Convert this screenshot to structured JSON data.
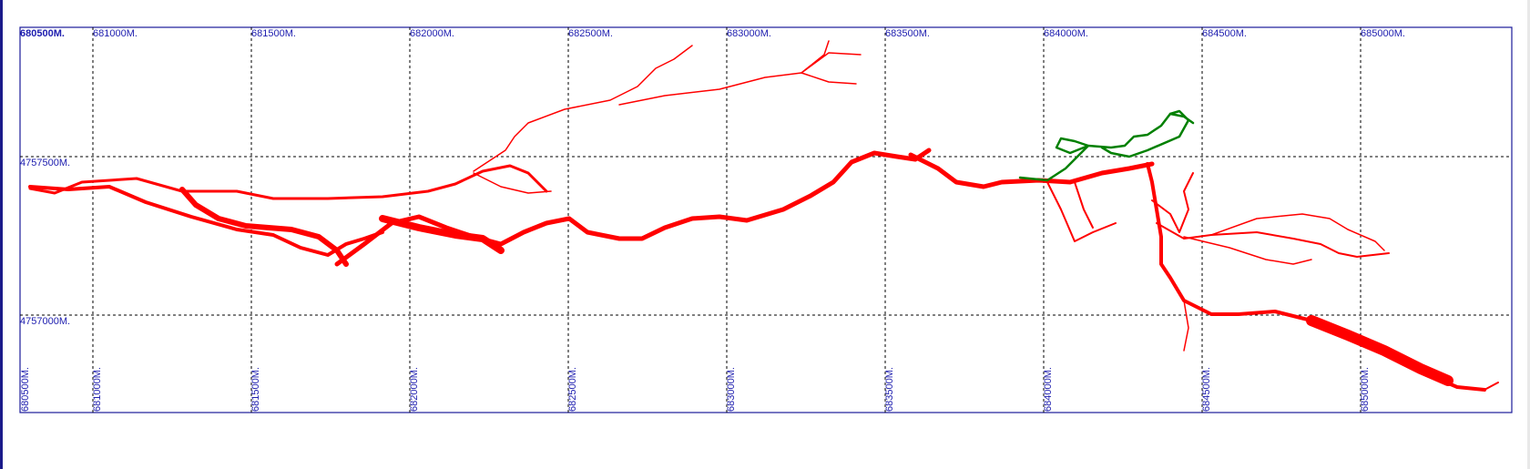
{
  "map": {
    "grid_top_labels": [
      "680500M.",
      "681000M.",
      "681500M.",
      "682000M.",
      "682500M.",
      "683000M.",
      "683500M.",
      "684000M.",
      "684500M.",
      "685000M."
    ],
    "grid_bottom_labels": [
      "680500M.",
      "681000M.",
      "681500M.",
      "682000M.",
      "682500M.",
      "683000M.",
      "683500M.",
      "684000M.",
      "684500M.",
      "685000M."
    ],
    "grid_left_labels": [
      "4757500M.",
      "4757000M."
    ],
    "colors": {
      "frame": "#1a1a9a",
      "grid": "#000000",
      "label": "#2020b0",
      "cave_main": "#ff0000",
      "cave_secondary": "#008000"
    }
  }
}
